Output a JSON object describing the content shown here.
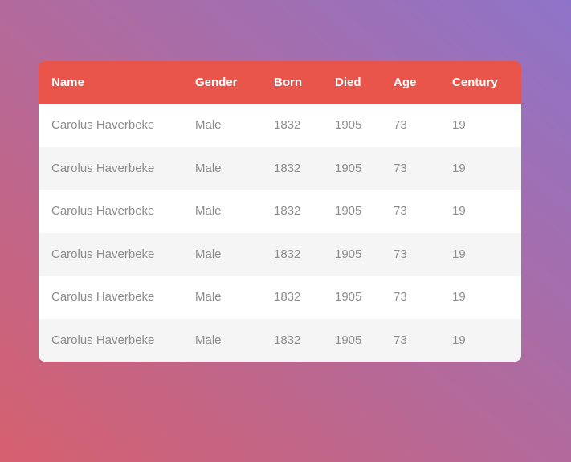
{
  "colors": {
    "bg-gradient-start": "#d6606f",
    "bg-gradient-end": "#8e74c9",
    "header-bg": "#e9554a",
    "header-text": "#ffffff",
    "row-bg": "#ffffff",
    "row-alt-bg": "#f5f5f5",
    "cell-text": "#8d8d8d"
  },
  "table": {
    "columns": [
      "Name",
      "Gender",
      "Born",
      "Died",
      "Age",
      "Century"
    ],
    "rows": [
      {
        "name": "Carolus Haverbeke",
        "gender": "Male",
        "born": "1832",
        "died": "1905",
        "age": "73",
        "century": "19"
      },
      {
        "name": "Carolus Haverbeke",
        "gender": "Male",
        "born": "1832",
        "died": "1905",
        "age": "73",
        "century": "19"
      },
      {
        "name": "Carolus Haverbeke",
        "gender": "Male",
        "born": "1832",
        "died": "1905",
        "age": "73",
        "century": "19"
      },
      {
        "name": "Carolus Haverbeke",
        "gender": "Male",
        "born": "1832",
        "died": "1905",
        "age": "73",
        "century": "19"
      },
      {
        "name": "Carolus Haverbeke",
        "gender": "Male",
        "born": "1832",
        "died": "1905",
        "age": "73",
        "century": "19"
      },
      {
        "name": "Carolus Haverbeke",
        "gender": "Male",
        "born": "1832",
        "died": "1905",
        "age": "73",
        "century": "19"
      }
    ]
  }
}
